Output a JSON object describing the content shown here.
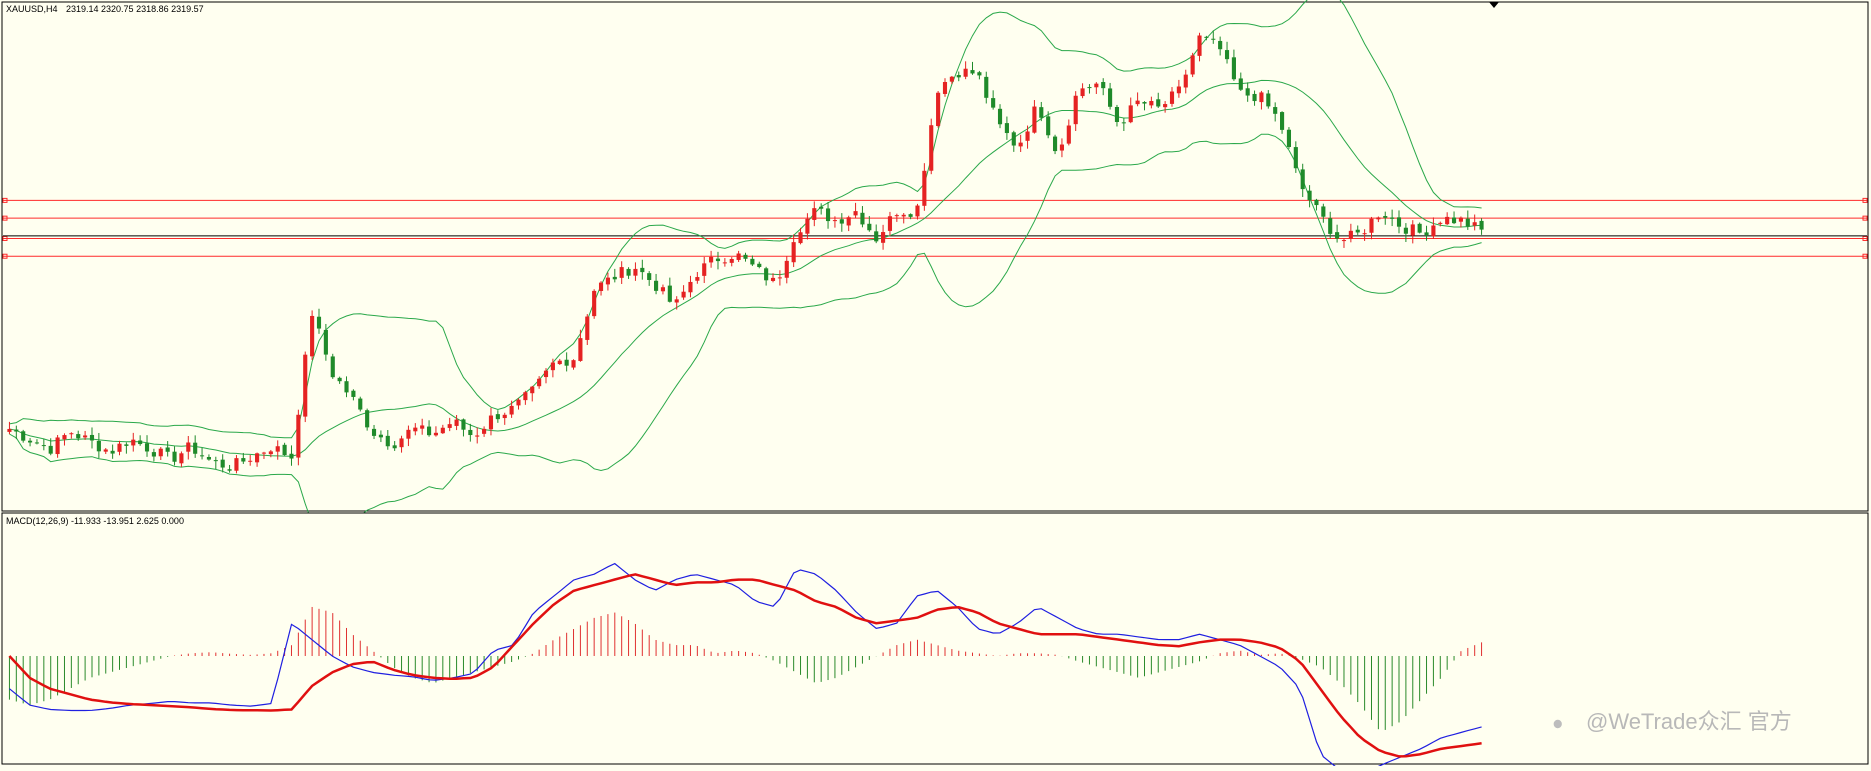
{
  "header": {
    "symbol": "XAUUSD,H4",
    "ohlc": "2319.14 2320.75 2318.86 2319.57"
  },
  "indicator": {
    "label": "MACD(12,26,9) -11.933 -13.951 2.625 0.000"
  },
  "watermark": {
    "text": "@WeTrade众汇 官方"
  },
  "colors": {
    "background": "#fffff0",
    "bull": "#e52222",
    "bear": "#1f8a2a",
    "bands": "#2aa84a",
    "hline": "#ff2a2a",
    "price_line": "#000000",
    "macd_main": "#1f1fe0",
    "macd_signal": "#e01010",
    "hist_pos": "#e03030",
    "hist_neg": "#2a8a2a"
  },
  "chart_data": [
    {
      "type": "candlestick",
      "ylim": [
        2260,
        2455
      ],
      "bollinger": true,
      "candle_count": 215,
      "horizontal_lines": [
        2380,
        2373,
        2365,
        2358
      ],
      "current_price_line": 2366,
      "ohlc_anchor_closes": [
        2290,
        2286,
        2282,
        2289,
        2285,
        2281,
        2286,
        2282,
        2278,
        2283,
        2277,
        2275,
        2279,
        2283,
        2279,
        2336,
        2312,
        2302,
        2289,
        2284,
        2290,
        2288,
        2293,
        2287,
        2295,
        2298,
        2305,
        2316,
        2318,
        2345,
        2350,
        2354,
        2347,
        2338,
        2351,
        2357,
        2359,
        2353,
        2347,
        2368,
        2376,
        2372,
        2376,
        2365,
        2376,
        2376,
        2424,
        2431,
        2430,
        2410,
        2401,
        2418,
        2398,
        2424,
        2426,
        2410,
        2419,
        2416,
        2423,
        2444,
        2440,
        2422,
        2421,
        2411,
        2386,
        2374,
        2364,
        2367,
        2376,
        2370,
        2367,
        2373,
        2372,
        2368
      ]
    },
    {
      "type": "macd",
      "params": [
        12,
        26,
        9
      ],
      "ylim": [
        -22,
        14
      ],
      "macd_anchors": [
        -6,
        -9,
        -9.8,
        -10,
        -10,
        -9.6,
        -9,
        -8.7,
        -8.3,
        -8.6,
        -8.6,
        -9,
        -9.2,
        -8.7,
        6,
        3,
        0,
        -2,
        -3,
        -3.5,
        -3.8,
        -4.5,
        -4,
        -3.2,
        1,
        2,
        8,
        11,
        14,
        15,
        17,
        14,
        12,
        14,
        15,
        14,
        13,
        10,
        9,
        16,
        15,
        12,
        8,
        5,
        6,
        11,
        12,
        9,
        5,
        4,
        6,
        9,
        7,
        5,
        4,
        4,
        3.5,
        3,
        3,
        4,
        3,
        2,
        0,
        -2,
        -6,
        -18,
        -21,
        -22,
        -20,
        -18.5,
        -17,
        -15,
        -14,
        -13
      ],
      "signal_anchors": [
        0,
        -4,
        -6,
        -7,
        -8,
        -8.5,
        -8.8,
        -9,
        -9.2,
        -9.4,
        -9.7,
        -9.9,
        -9.95,
        -10,
        -9.8,
        -5.5,
        -3,
        -1.5,
        -1,
        -2.5,
        -3.5,
        -4,
        -4.2,
        -4,
        -2,
        2,
        6,
        9.5,
        12,
        13,
        14,
        15,
        14,
        13,
        13.5,
        13.5,
        14,
        14,
        13,
        12,
        10,
        9,
        7,
        6,
        6.5,
        7,
        8.5,
        9,
        8,
        6,
        5,
        4,
        4,
        4,
        3.5,
        3,
        2.5,
        2,
        1.8,
        2.5,
        3,
        3,
        2.5,
        1.5,
        -1,
        -6,
        -11,
        -15,
        -17.5,
        -18.5,
        -18,
        -17,
        -16.5,
        -16
      ],
      "histogram_anchors": [
        -8,
        -9,
        -8,
        -6,
        -4,
        -3,
        -2,
        -1,
        0,
        0.5,
        0.7,
        0.4,
        0.2,
        0.5,
        2,
        9,
        8,
        4,
        1,
        -2,
        -4,
        -5,
        -4,
        -3,
        -2,
        -1,
        0.5,
        3,
        5,
        7,
        8,
        6,
        3,
        2,
        2,
        0.5,
        1,
        0.5,
        -1,
        -3,
        -5,
        -4,
        -2,
        0,
        2,
        3,
        2,
        1,
        0.5,
        0,
        0.5,
        0.5,
        0.2,
        -1,
        -2,
        -3,
        -4,
        -3,
        -2,
        -1,
        0.5,
        1,
        0.2,
        0.5,
        -0.5,
        -2,
        -5,
        -9,
        -14,
        -12,
        -8,
        -4,
        1,
        2.5
      ]
    }
  ]
}
